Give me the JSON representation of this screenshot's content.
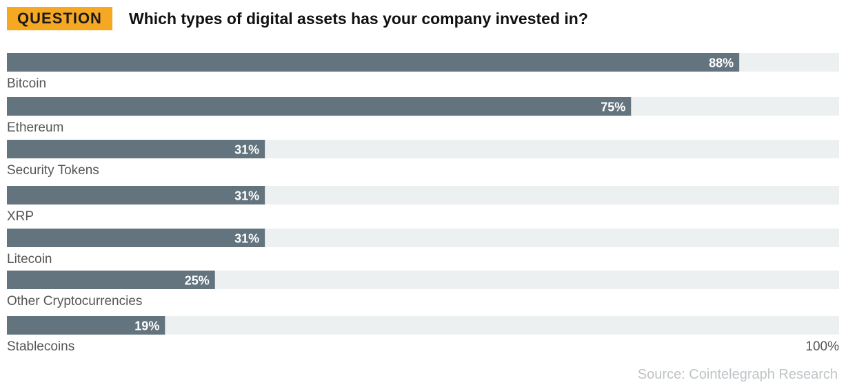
{
  "header": {
    "badge": "QUESTION",
    "question": "Which types of digital assets has your company invested in?"
  },
  "colors": {
    "bar": "#63747e",
    "track": "#edf0f1",
    "badge": "#f7a823",
    "label": "#555555",
    "source": "#bfc3c6"
  },
  "chart_data": {
    "type": "bar",
    "orientation": "horizontal",
    "title": "Which types of digital assets has your company invested in?",
    "categories": [
      "Bitcoin",
      "Ethereum",
      "Security Tokens",
      "XRP",
      "Litecoin",
      "Other Cryptocurrencies",
      "Stablecoins"
    ],
    "values": [
      88,
      75,
      31,
      31,
      31,
      25,
      19
    ],
    "value_labels": [
      "88%",
      "75%",
      "31%",
      "31%",
      "31%",
      "25%",
      "19%"
    ],
    "xlim": [
      0,
      100
    ],
    "axis_end_label": "100%",
    "grid": false,
    "legend": "none"
  },
  "source": "Source: Cointelegraph Research"
}
